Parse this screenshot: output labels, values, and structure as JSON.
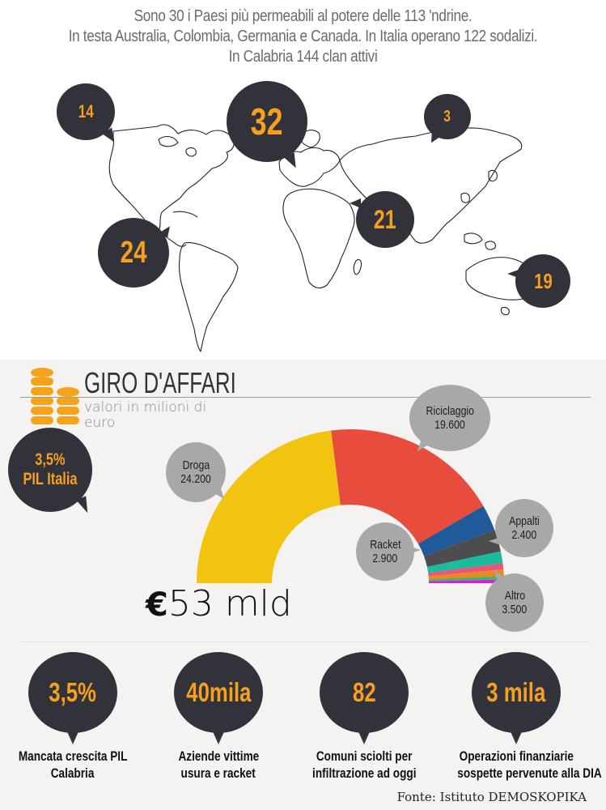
{
  "headline": {
    "line1": "Sono 30 i Paesi più permeabili al potere delle 113 'ndrine.",
    "line2": "In testa Australia, Colombia, Germania e Canada. In Italia operano 122 sodalizi.",
    "line3": "In Calabria 144 clan attivi"
  },
  "map_bubbles": [
    {
      "region": "North America (Canada)",
      "value": "14"
    },
    {
      "region": "Europe (Germania)",
      "value": "32"
    },
    {
      "region": "Russia",
      "value": "3"
    },
    {
      "region": "Africa / Middle East",
      "value": "21"
    },
    {
      "region": "South America (Colombia)",
      "value": "24"
    },
    {
      "region": "Australia",
      "value": "19"
    }
  ],
  "section": {
    "title": "GIRO D'AFFARI",
    "subtitle": "valori in milioni di euro",
    "pil_bubble": {
      "line1": "3,5%",
      "line2": "PIL Italia"
    },
    "total_symbol": "€",
    "total_text": "53 mld"
  },
  "labels": {
    "droga": {
      "name": "Droga",
      "value": "24.200"
    },
    "riciclaggio": {
      "name": "Riciclaggio",
      "value": "19.600"
    },
    "racket": {
      "name": "Racket",
      "value": "2.900"
    },
    "appalti": {
      "name": "Appalti",
      "value": "2.400"
    },
    "altro": {
      "name": "Altro",
      "value": "3.500"
    }
  },
  "stats": [
    {
      "value": "3,5%",
      "label1": "Mancata crescita PIL",
      "label2": "Calabria"
    },
    {
      "value": "40mila",
      "label1": "Aziende vittime",
      "label2": "usura e racket"
    },
    {
      "value": "82",
      "label1": "Comuni sciolti per",
      "label2": "infiltrazione ad oggi"
    },
    {
      "value": "3 mila",
      "label1": "Operazioni finanziarie",
      "label2": "sospette pervenute alla DIA"
    }
  ],
  "source": "Fonte: Istituto DEMOSKOPIKA",
  "colors": {
    "bubble_dark": "#32333a",
    "accent_orange": "#f5a01e",
    "bubble_gray": "#a8a8a8",
    "background_gray": "#f4f3f2"
  },
  "chart_data": {
    "type": "pie",
    "subtype": "semi-donut",
    "title": "GIRO D'AFFARI",
    "subtitle": "valori in milioni di euro",
    "total_label": "€53 mld",
    "categories": [
      "Droga",
      "Riciclaggio",
      "Racket",
      "Appalti",
      "Altro"
    ],
    "values": [
      24200,
      19600,
      2900,
      2400,
      3500
    ],
    "units": "milioni di euro",
    "segments": [
      {
        "name": "Droga",
        "value": 24200,
        "color": "#f2c40f"
      },
      {
        "name": "Riciclaggio",
        "value": 19600,
        "color": "#e84c3d"
      },
      {
        "name": "Racket",
        "value": 2900,
        "color": "#1f5b9a"
      },
      {
        "name": "Appalti",
        "value": 2400,
        "color": "#4d4d4f"
      },
      {
        "name": "Altro (1)",
        "value": 1300,
        "color": "#1abc9c"
      },
      {
        "name": "Altro (2)",
        "value": 700,
        "color": "#e8567a"
      },
      {
        "name": "Altro (3)",
        "value": 700,
        "color": "#f0861e"
      },
      {
        "name": "Altro (4)",
        "value": 400,
        "color": "#3fb36b"
      },
      {
        "name": "Altro (5)",
        "value": 400,
        "color": "#d61ee0"
      }
    ],
    "legend": "callout bubbles"
  }
}
